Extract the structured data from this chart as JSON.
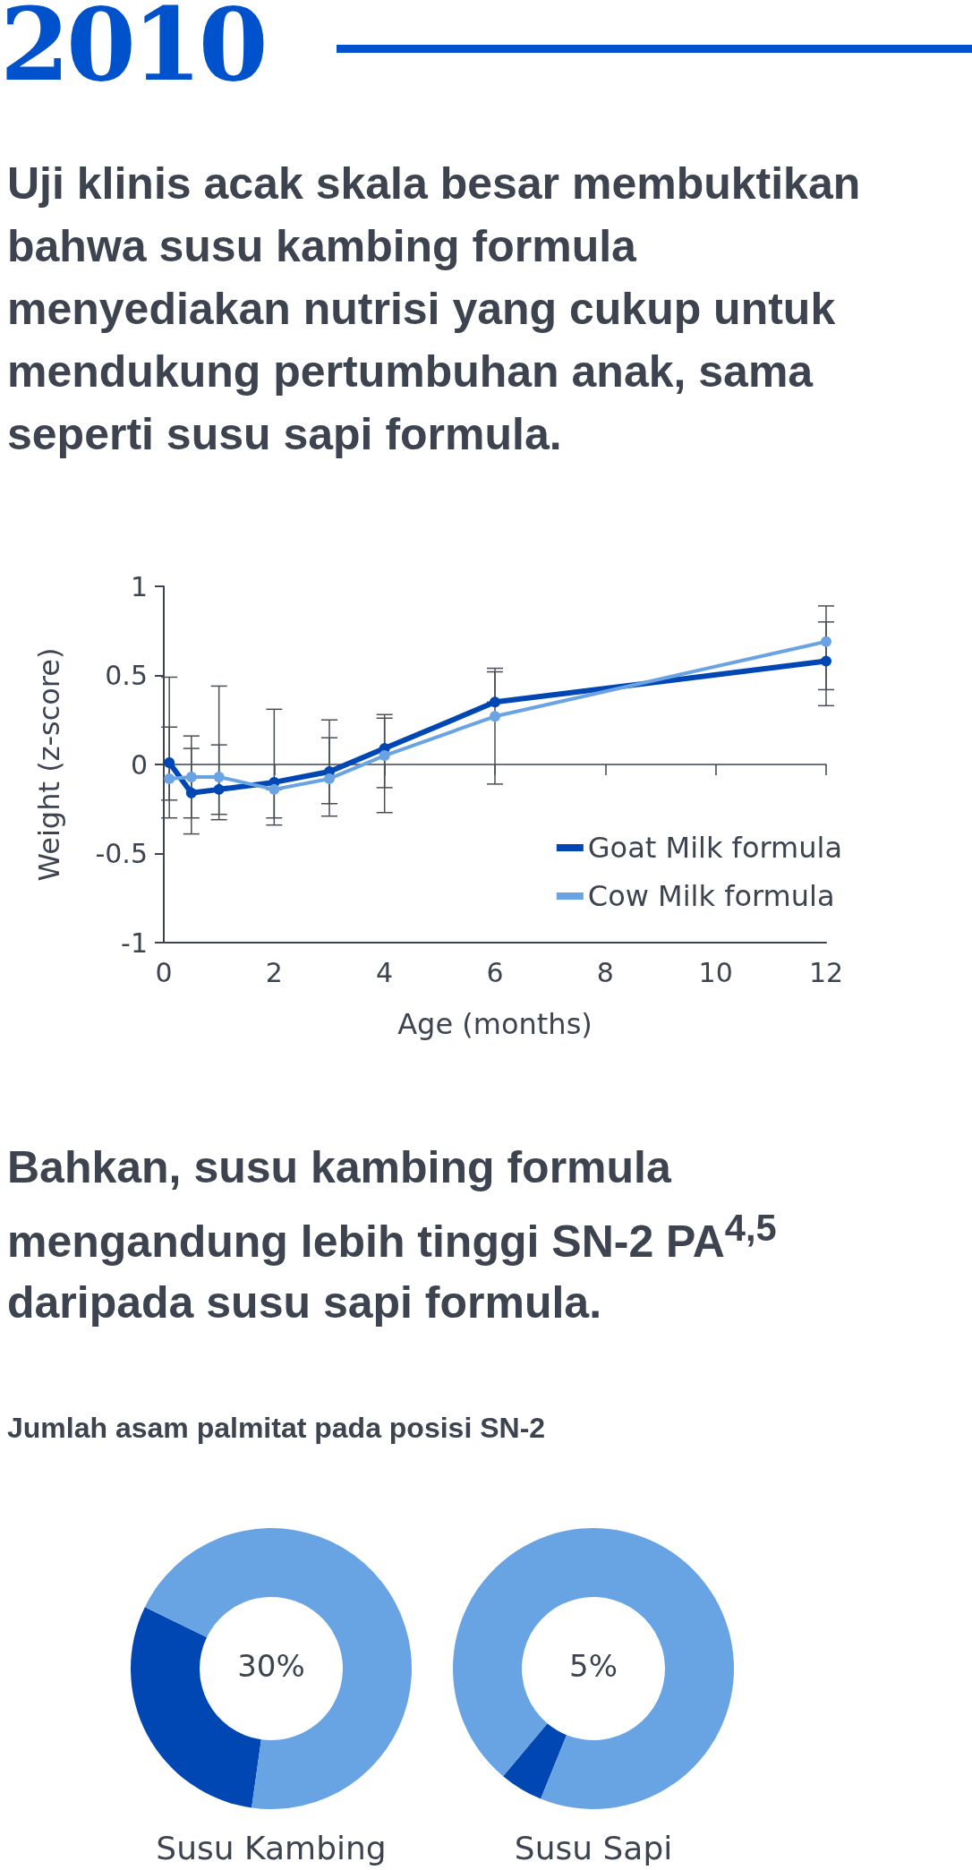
{
  "chart_data": [
    {
      "type": "line",
      "title": "2010",
      "subtitle": "Uji klinis acak skala besar membuktikan bahwa susu kambing formula menyediakan nutrisi yang cukup untuk mendukung pertumbuhan anak, sama seperti susu sapi formula.",
      "xlabel": "Age (months)",
      "ylabel": "Weight (z-score)",
      "xlim": [
        0,
        12
      ],
      "xticks": [
        0,
        2,
        4,
        6,
        8,
        10,
        12
      ],
      "ylim": [
        -1,
        1
      ],
      "yticks": [
        -1,
        -0.5,
        0,
        0.5,
        1
      ],
      "legend": "bottom right",
      "marker": "circle",
      "series": [
        {
          "name": "Goat Milk formula",
          "color": "#0047b3",
          "x": [
            0.1,
            0.5,
            1,
            2,
            3,
            4,
            6,
            12
          ],
          "values": [
            0.01,
            -0.16,
            -0.14,
            -0.1,
            -0.04,
            0.09,
            0.35,
            0.58
          ],
          "errors": [
            [
              -0.2,
              0.21
            ],
            [
              -0.39,
              0.09
            ],
            [
              -0.31,
              0.11
            ],
            [
              -0.3,
              0.31
            ],
            [
              -0.22,
              0.15
            ],
            [
              -0.13,
              0.28
            ],
            [
              0.35,
              0.54
            ],
            [
              0.33,
              0.8
            ]
          ]
        },
        {
          "name": "Cow Milk formula",
          "color": "#6aa3e3",
          "x": [
            0.1,
            0.5,
            1,
            2,
            3,
            4,
            6,
            12
          ],
          "values": [
            -0.08,
            -0.07,
            -0.07,
            -0.14,
            -0.08,
            0.05,
            0.27,
            0.69
          ],
          "errors": [
            [
              -0.3,
              0.49
            ],
            [
              -0.3,
              0.16
            ],
            [
              -0.28,
              0.44
            ],
            [
              -0.34,
              -0.14
            ],
            [
              -0.29,
              0.25
            ],
            [
              -0.27,
              0.26
            ],
            [
              -0.11,
              0.52
            ],
            [
              0.42,
              0.89
            ]
          ]
        }
      ]
    },
    {
      "type": "other",
      "title": "Bahkan, susu kambing formula mengandung lebih tinggi SN-2 PA$^{4,5}$ daripada susu sapi formula.",
      "subtitle": "Jumlah asam palmitat pada posisi SN-2"
    },
    {
      "type": "donut",
      "title": "Susu Kambing",
      "categories": [
        null,
        null
      ],
      "values": [
        30,
        70
      ],
      "colors": [
        "#0047b3",
        "#68a3e3"
      ],
      "annotations": [
        "30%"
      ]
    },
    {
      "type": "donut",
      "title": "Susu Sapi",
      "categories": [
        null,
        null
      ],
      "values": [
        5,
        95
      ],
      "colors": [
        "#0047b3",
        "#68a3e3"
      ],
      "annotations": [
        "5%"
      ]
    }
  ]
}
